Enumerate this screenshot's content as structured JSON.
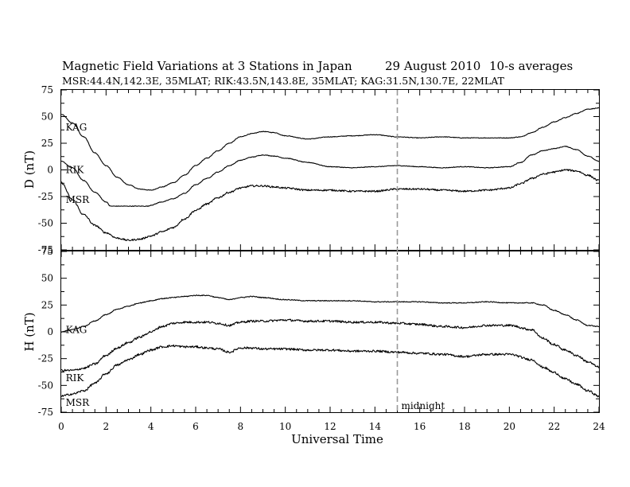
{
  "chart_data": {
    "type": "line",
    "title": "Magnetic Field Variations at 3 Stations in Japan",
    "date": "29  August  2010",
    "averaging": "10-s averages",
    "subtitle": "MSR:44.4N,142.3E, 35MLAT;  RIK:43.5N,143.8E, 35MLAT;  KAG:31.5N,130.7E, 22MLAT",
    "xlabel": "Universal Time",
    "xlim": [
      0,
      24
    ],
    "xticks": [
      "0",
      "2",
      "4",
      "6",
      "8",
      "10",
      "12",
      "14",
      "16",
      "18",
      "20",
      "22",
      "24"
    ],
    "annotation": {
      "x": 15,
      "text": "midnight"
    },
    "panels": [
      {
        "ylabel": "D (nT)",
        "ylim": [
          -75,
          75
        ],
        "yticks": [
          "75",
          "50",
          "25",
          "0",
          "-25",
          "-50",
          "-75"
        ],
        "series": [
          {
            "name": "KAG",
            "label_at": [
              0.2,
              40
            ],
            "noise": 0.3,
            "x": [
              0,
              0.5,
              1,
              1.5,
              2,
              2.5,
              3,
              3.5,
              4,
              4.5,
              5,
              5.5,
              6,
              6.5,
              7,
              7.5,
              8,
              8.5,
              9,
              9.5,
              10,
              11,
              12,
              13,
              14,
              15,
              16,
              17,
              18,
              19,
              20,
              20.5,
              21,
              21.5,
              22,
              22.5,
              23,
              23.5,
              24
            ],
            "y": [
              52,
              44,
              31,
              16,
              4,
              -7,
              -14,
              -18,
              -19,
              -16,
              -12,
              -5,
              4,
              11,
              18,
              25,
              31,
              34,
              36,
              35,
              32,
              29,
              31,
              32,
              33,
              31,
              30,
              31,
              30,
              30,
              30,
              31,
              35,
              40,
              45,
              49,
              53,
              57,
              58
            ]
          },
          {
            "name": "RIK",
            "label_at": [
              0.2,
              0
            ],
            "noise": 0.3,
            "x": [
              0,
              0.5,
              1,
              1.5,
              2,
              2.2,
              2.5,
              3,
              3.5,
              3.9,
              4,
              4.5,
              5,
              5.5,
              6,
              6.5,
              7,
              7.5,
              8,
              8.5,
              9,
              9.5,
              10,
              11,
              12,
              13,
              14,
              15,
              16,
              17,
              18,
              19,
              20,
              20.5,
              21,
              21.5,
              22,
              22.5,
              23,
              23.5,
              24
            ],
            "y": [
              8,
              2,
              -10,
              -21,
              -30,
              -34,
              -34,
              -34,
              -34,
              -34,
              -33,
              -30,
              -27,
              -22,
              -14,
              -8,
              -2,
              4,
              9,
              12,
              14,
              13,
              11,
              7,
              3,
              2,
              3,
              4,
              3,
              2,
              3,
              2,
              3,
              7,
              14,
              18,
              20,
              22,
              19,
              13,
              8
            ]
          },
          {
            "name": "MSR",
            "label_at": [
              0.2,
              -28
            ],
            "noise": 0.8,
            "x": [
              0,
              0.5,
              1,
              1.5,
              2,
              2.5,
              3,
              3.5,
              4,
              4.5,
              5,
              5.5,
              6,
              6.5,
              7,
              7.5,
              8,
              8.5,
              9,
              9.5,
              10,
              11,
              12,
              13,
              14,
              15,
              16,
              17,
              18,
              19,
              20,
              20.5,
              21,
              21.5,
              22,
              22.5,
              23,
              23.5,
              24
            ],
            "y": [
              -12,
              -28,
              -42,
              -52,
              -59,
              -64,
              -66,
              -65,
              -62,
              -58,
              -54,
              -46,
              -38,
              -32,
              -26,
              -21,
              -17,
              -15,
              -15,
              -16,
              -17,
              -19,
              -19,
              -20,
              -20,
              -18,
              -18,
              -19,
              -20,
              -19,
              -17,
              -13,
              -8,
              -4,
              -2,
              0,
              -1,
              -5,
              -10
            ]
          }
        ]
      },
      {
        "ylabel": "H (nT)",
        "ylim": [
          -75,
          75
        ],
        "yticks": [
          "75",
          "50",
          "25",
          "0",
          "-25",
          "-50",
          "-75"
        ],
        "series": [
          {
            "name": "KAG",
            "label_at": [
              0.2,
              2
            ],
            "noise": 0.4,
            "x": [
              0,
              0.5,
              1,
              1.5,
              2,
              2.5,
              3,
              3.5,
              4,
              4.5,
              5,
              5.5,
              6,
              6.5,
              7,
              7.5,
              8,
              8.5,
              9,
              10,
              11,
              12,
              13,
              14,
              15,
              16,
              17,
              18,
              19,
              20,
              21,
              21.5,
              22,
              22.5,
              23,
              23.5,
              24
            ],
            "y": [
              0,
              2,
              5,
              10,
              16,
              21,
              24,
              27,
              29,
              31,
              32,
              33,
              34,
              34,
              32,
              30,
              32,
              33,
              32,
              30,
              29,
              29,
              29,
              28,
              28,
              28,
              27,
              27,
              28,
              27,
              27,
              25,
              20,
              16,
              11,
              6,
              5
            ]
          },
          {
            "name": "RIK",
            "label_at": [
              0.2,
              -43
            ],
            "noise": 1.0,
            "x": [
              0,
              0.5,
              1,
              1.5,
              2,
              2.5,
              3,
              3.5,
              4,
              4.5,
              5,
              5.5,
              6,
              6.5,
              7,
              7.5,
              8,
              8.5,
              9,
              10,
              11,
              12,
              13,
              14,
              15,
              16,
              17,
              18,
              19,
              20,
              21,
              21.5,
              22,
              22.5,
              23,
              23.5,
              24
            ],
            "y": [
              -36,
              -36,
              -34,
              -30,
              -22,
              -15,
              -10,
              -5,
              0,
              5,
              8,
              9,
              9,
              9,
              8,
              6,
              9,
              10,
              10,
              11,
              10,
              10,
              9,
              9,
              8,
              7,
              5,
              4,
              6,
              6,
              2,
              -6,
              -12,
              -17,
              -22,
              -28,
              -33
            ]
          },
          {
            "name": "MSR",
            "label_at": [
              0.2,
              -66
            ],
            "noise": 1.0,
            "x": [
              0,
              0.5,
              1,
              1.5,
              2,
              2.5,
              3,
              3.5,
              4,
              4.5,
              5,
              5.5,
              6,
              6.5,
              7,
              7.5,
              8,
              8.5,
              9,
              10,
              11,
              12,
              13,
              14,
              15,
              16,
              17,
              18,
              19,
              20,
              21,
              21.5,
              22,
              22.5,
              23,
              23.5,
              24
            ],
            "y": [
              -60,
              -58,
              -55,
              -48,
              -39,
              -31,
              -26,
              -21,
              -17,
              -14,
              -13,
              -14,
              -14,
              -15,
              -16,
              -19,
              -15,
              -15,
              -16,
              -16,
              -17,
              -17,
              -18,
              -18,
              -19,
              -20,
              -21,
              -23,
              -21,
              -21,
              -26,
              -33,
              -38,
              -44,
              -49,
              -55,
              -60
            ]
          }
        ]
      }
    ]
  }
}
